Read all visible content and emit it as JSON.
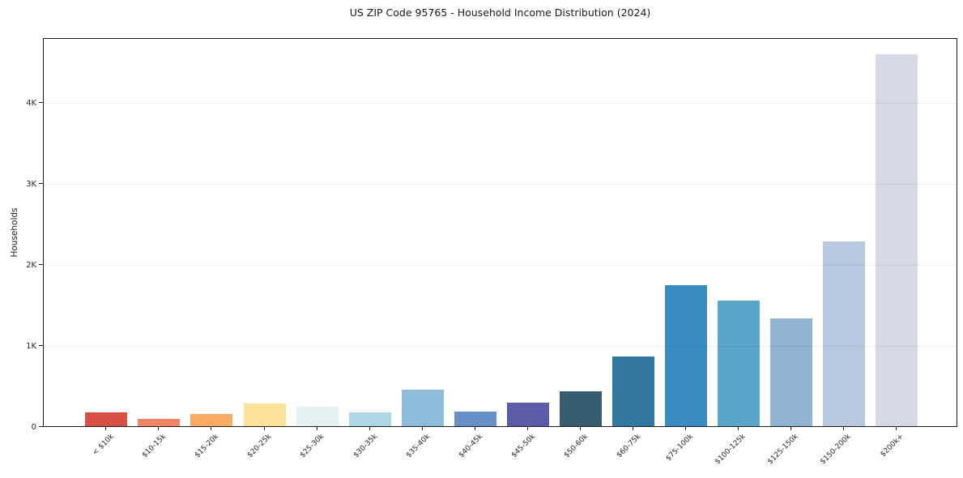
{
  "chart_data": {
    "type": "bar",
    "title": "US ZIP Code 95765 - Household Income Distribution (2024)",
    "xlabel": "",
    "ylabel": "Households",
    "categories": [
      "< $10k",
      "$10-15k",
      "$15-20k",
      "$20-25k",
      "$25-30k",
      "$30-35k",
      "$35-40k",
      "$40-45k",
      "$45-50k",
      "$50-60k",
      "$60-75k",
      "$75-100k",
      "$100-125k",
      "$125-150k",
      "$150-200k",
      "$200k+"
    ],
    "values": [
      175,
      90,
      155,
      280,
      240,
      170,
      455,
      185,
      295,
      435,
      860,
      1740,
      1550,
      1330,
      2280,
      4590
    ],
    "bar_colors": [
      "#d85045",
      "#f28566",
      "#f8ab63",
      "#fbe29b",
      "#e4f1f3",
      "#aed7e6",
      "#8fbcdb",
      "#6890c8",
      "#5c5caa",
      "#365c70",
      "#35789f",
      "#3a8cc1",
      "#5aa5c8",
      "#90b4d2",
      "#b7c9de",
      "#d8d9e7"
    ],
    "ytick_values": [
      0,
      1000,
      2000,
      3000,
      4000
    ],
    "ytick_labels": [
      "0",
      "1K",
      "2K",
      "3K",
      "4K"
    ],
    "ylim": [
      0,
      4800
    ],
    "grid": "horizontal",
    "legend": "none",
    "style_colors": {
      "background": "#ffffff",
      "spine": "#1a1a1a",
      "gridline": "rgba(0,0,0,0.07)",
      "text": "#1a1a1a"
    }
  }
}
